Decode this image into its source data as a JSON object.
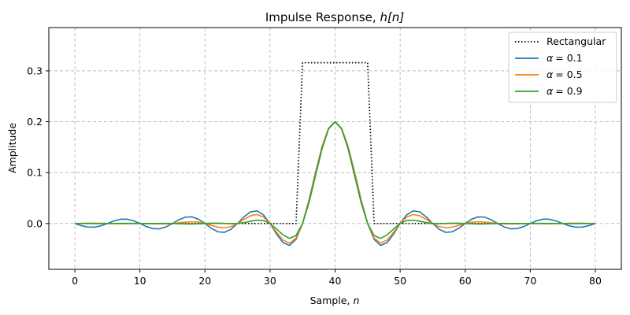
{
  "chart_data": {
    "type": "line",
    "title_main": "Impulse Response, ",
    "title_math": "h[n]",
    "xlabel_main": "Sample, ",
    "xlabel_math": "n",
    "ylabel": "Amplitude",
    "xlim": [
      -4,
      84
    ],
    "ylim": [
      -0.09,
      0.385
    ],
    "x_ticks": [
      0,
      10,
      20,
      30,
      40,
      50,
      60,
      70,
      80
    ],
    "y_ticks": [
      0.0,
      0.1,
      0.2,
      0.3
    ],
    "x_tick_labels": [
      "0",
      "10",
      "20",
      "30",
      "40",
      "50",
      "60",
      "70",
      "80"
    ],
    "y_tick_labels": [
      "0.0",
      "0.1",
      "0.2",
      "0.3"
    ],
    "grid": true,
    "legend_position": "top-right",
    "n_samples": 81,
    "center": 40,
    "cutoff": 0.1,
    "series": [
      {
        "name": "Rectangular",
        "label_math": "",
        "kind": "rect",
        "color": "#000000",
        "style": "dotted",
        "half_width": 5,
        "height": 0.316
      },
      {
        "name": "alpha = 0.1",
        "label_math": "α = 0.1",
        "kind": "rc",
        "alpha": 0.1,
        "color": "#1f77b4",
        "style": "solid"
      },
      {
        "name": "alpha = 0.5",
        "label_math": "α = 0.5",
        "kind": "rc",
        "alpha": 0.5,
        "color": "#ff7f0e",
        "style": "solid"
      },
      {
        "name": "alpha = 0.9",
        "label_math": "α = 0.9",
        "kind": "rc",
        "alpha": 0.9,
        "color": "#2ca02c",
        "style": "solid"
      }
    ],
    "legend": {
      "rect_label": "Rectangular",
      "alpha_symbol": "α",
      "alpha_values": [
        "= 0.1",
        "= 0.5",
        "= 0.9"
      ]
    }
  }
}
